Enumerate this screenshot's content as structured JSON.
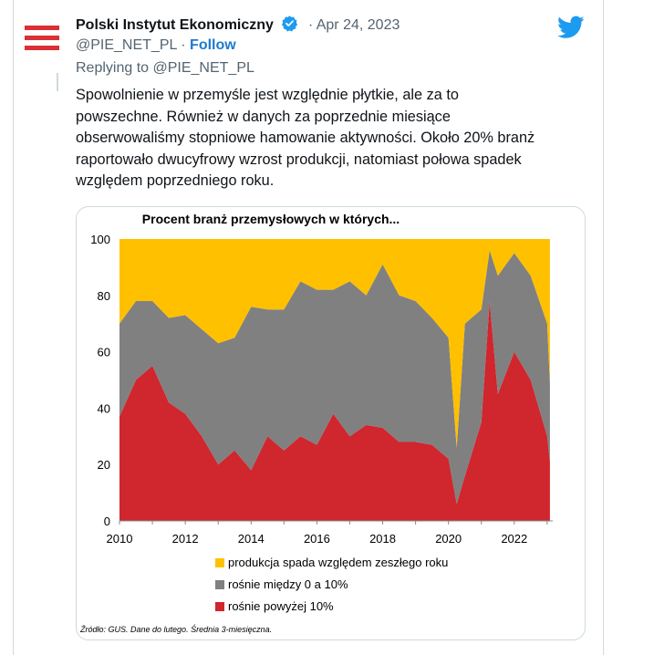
{
  "tweet": {
    "author_name": "Polski Instytut Ekonomiczny",
    "date": "Apr 24, 2023",
    "handle": "@PIE_NET_PL",
    "separator": "·",
    "follow_label": "Follow",
    "replying_prefix": "Replying to",
    "replying_to": "@PIE_NET_PL",
    "text_lines": [
      "Spowolnienie w przemyśle jest względnie płytkie, ale za to",
      "powszechne. Również w danych za poprzednie miesiące",
      "obserwowaliśmy stopniowe hamowanie aktywności. Około 20% branż",
      "raportowało dwucyfrowy wzrost produkcji, natomiast połowa spadek",
      "względem poprzedniego roku."
    ]
  },
  "colors": {
    "accent": "#1d9bf0",
    "logo_red": "#dc2f33",
    "series_top": "#ffc000",
    "series_mid": "#808080",
    "series_bottom": "#d0262e"
  },
  "icons": [
    "logo-icon",
    "verified-icon",
    "twitter-bird-icon"
  ],
  "chart_data": {
    "type": "area",
    "title": "Procent branż przemysłowych w których...",
    "source_note": "Źródło: GUS. Dane do lutego. Średnia 3-miesięczna.",
    "x_tick_labels": [
      "2010",
      "2012",
      "2014",
      "2016",
      "2018",
      "2020",
      "2022"
    ],
    "y_tick_labels": [
      "0",
      "20",
      "40",
      "60",
      "80",
      "100"
    ],
    "ylim": [
      0,
      100
    ],
    "stacked": true,
    "legend_position": "bottom",
    "x": [
      "2010-01",
      "2010-07",
      "2011-01",
      "2011-07",
      "2012-01",
      "2012-07",
      "2013-01",
      "2013-07",
      "2014-01",
      "2014-07",
      "2015-01",
      "2015-07",
      "2016-01",
      "2016-07",
      "2017-01",
      "2017-07",
      "2018-01",
      "2018-07",
      "2019-01",
      "2019-07",
      "2020-01",
      "2020-04",
      "2020-07",
      "2021-01",
      "2021-04",
      "2021-07",
      "2022-01",
      "2022-07",
      "2023-01",
      "2023-02"
    ],
    "series": [
      {
        "name": "rośnie powyżej 10%",
        "values": [
          37,
          50,
          55,
          42,
          38,
          30,
          20,
          25,
          18,
          30,
          25,
          30,
          27,
          38,
          30,
          34,
          33,
          28,
          28,
          27,
          22,
          6,
          16,
          35,
          78,
          45,
          60,
          50,
          30,
          21
        ]
      },
      {
        "name": "rośnie między 0 a 10%",
        "values": [
          33,
          28,
          23,
          30,
          35,
          38,
          43,
          40,
          58,
          45,
          50,
          55,
          55,
          44,
          55,
          46,
          58,
          52,
          50,
          45,
          43,
          20,
          54,
          40,
          18,
          42,
          35,
          37,
          40,
          28
        ]
      },
      {
        "name": "produkcja spada względem zeszłego roku",
        "values": [
          30,
          22,
          22,
          28,
          27,
          32,
          37,
          35,
          24,
          25,
          25,
          15,
          18,
          18,
          15,
          20,
          9,
          20,
          22,
          28,
          35,
          74,
          30,
          25,
          4,
          13,
          5,
          13,
          30,
          51
        ]
      }
    ]
  }
}
